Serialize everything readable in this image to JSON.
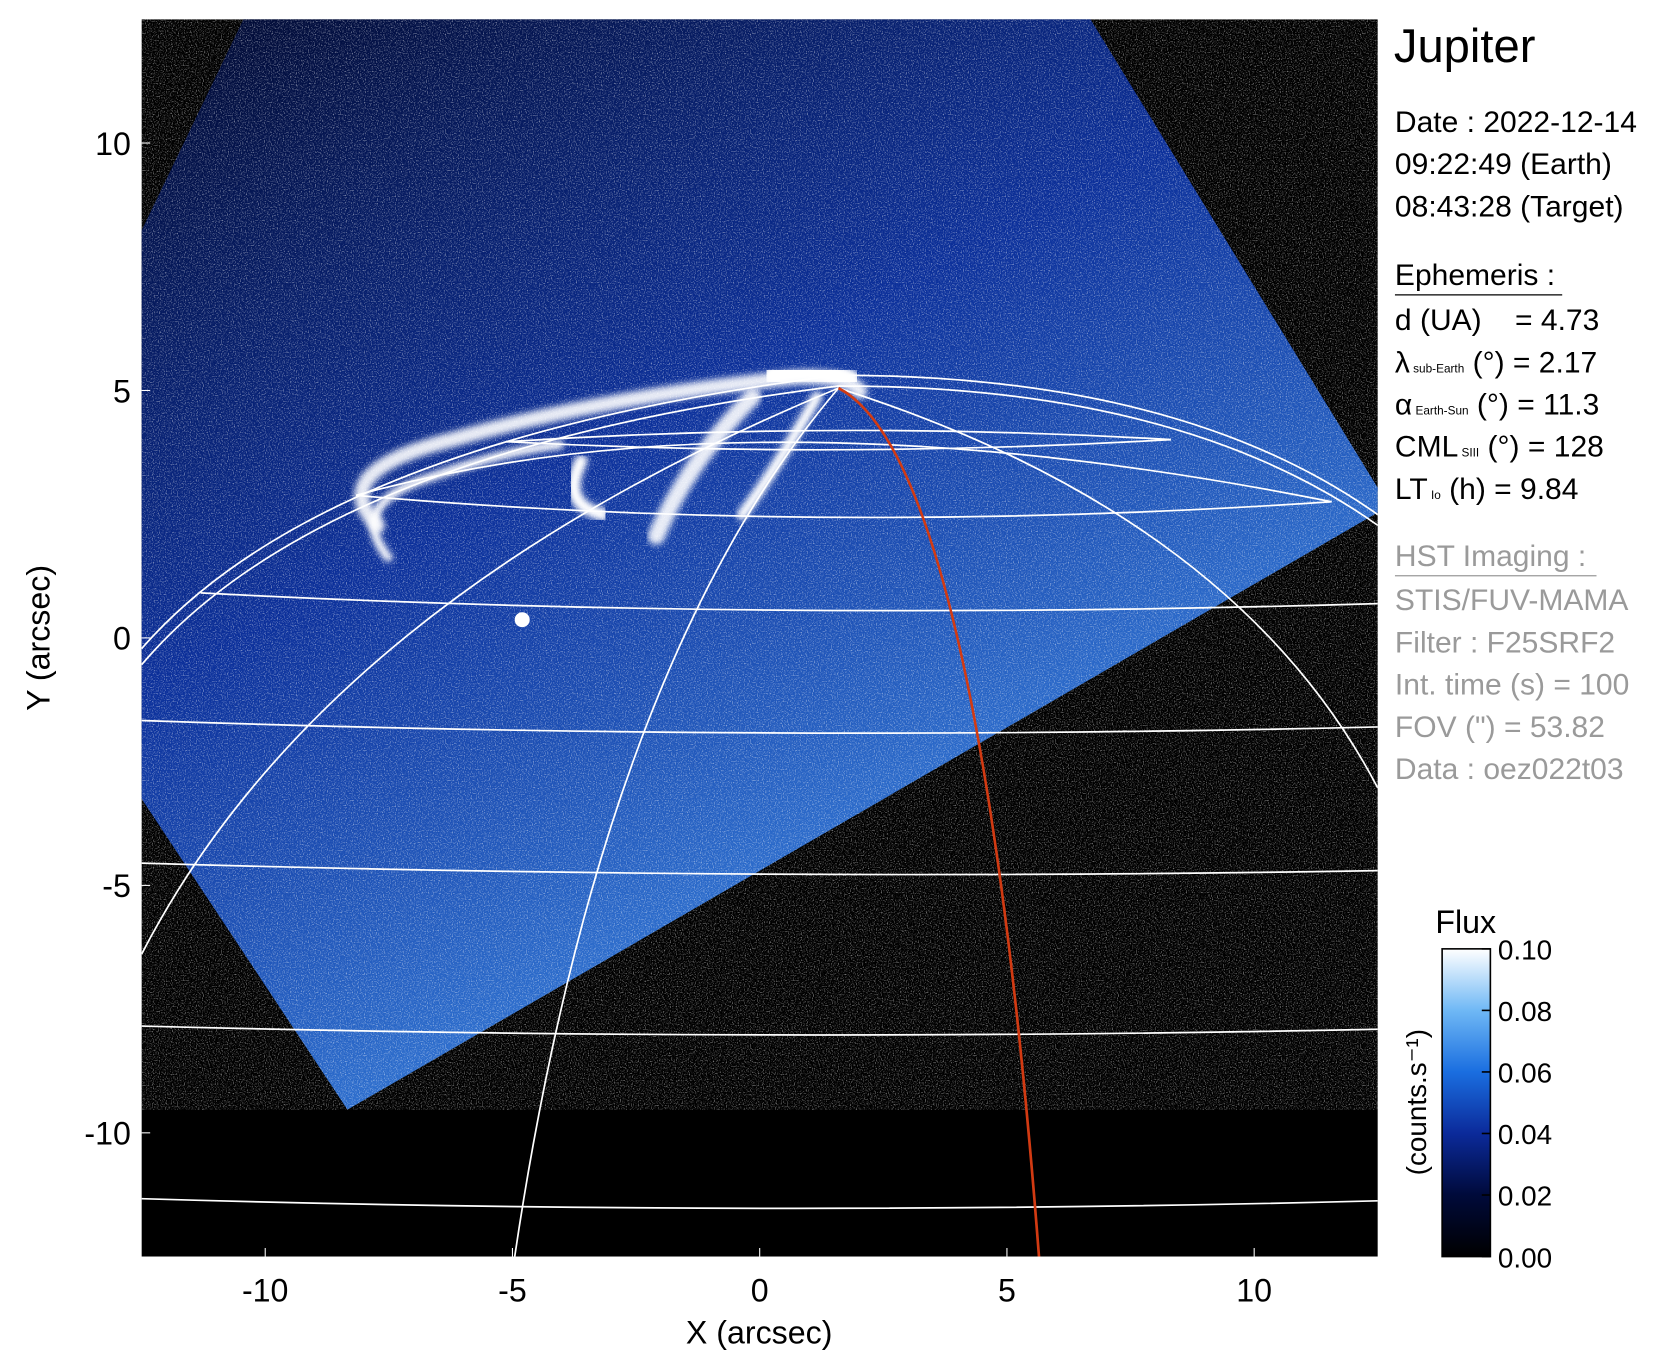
{
  "chart_data": {
    "type": "image",
    "xlabel": "X (arcsec)",
    "ylabel": "Y (arcsec)",
    "xlim": [
      -12.5,
      12.5
    ],
    "ylim": [
      -12.5,
      12.5
    ],
    "xticks": [
      -10,
      -5,
      0,
      5,
      10
    ],
    "yticks": [
      -10,
      -5,
      0,
      5,
      10
    ],
    "colorbar": {
      "label": "Flux",
      "unit": "(counts.s⁻¹)",
      "ylim": [
        0,
        0.1
      ],
      "yticks": [
        {
          "value": 0,
          "label": "0.00"
        },
        0.02,
        0.04,
        0.06,
        0.08,
        {
          "value": 0.1,
          "label": "0.10"
        }
      ]
    }
  },
  "info": {
    "target": "Jupiter",
    "date_lines": [
      "Date : 2022-12-14",
      "09:22:49 (Earth)",
      "08:43:28 (Target)"
    ],
    "ephemeris_title": "Ephemeris :",
    "ephemeris": [
      {
        "main": "d (UA)    = 4.73"
      },
      {
        "main": "λ",
        "sub": "sub-Earth",
        "rest": " (°) = 2.17"
      },
      {
        "main": "α",
        "sub": "Earth-Sun",
        "rest": " (°) = 11.3"
      },
      {
        "main": "CML",
        "sub": "SIII",
        "rest": " (°) = 128"
      },
      {
        "main": "LT",
        "sub": "Io",
        "rest": " (h) = 9.84"
      }
    ],
    "instrument_title": "HST Imaging :",
    "instrument": [
      "STIS/FUV-MAMA",
      "Filter : F25SRF2",
      "Int. time (s) = 100",
      "FOV (\") = 53.82",
      "Data : oez022t03"
    ]
  }
}
